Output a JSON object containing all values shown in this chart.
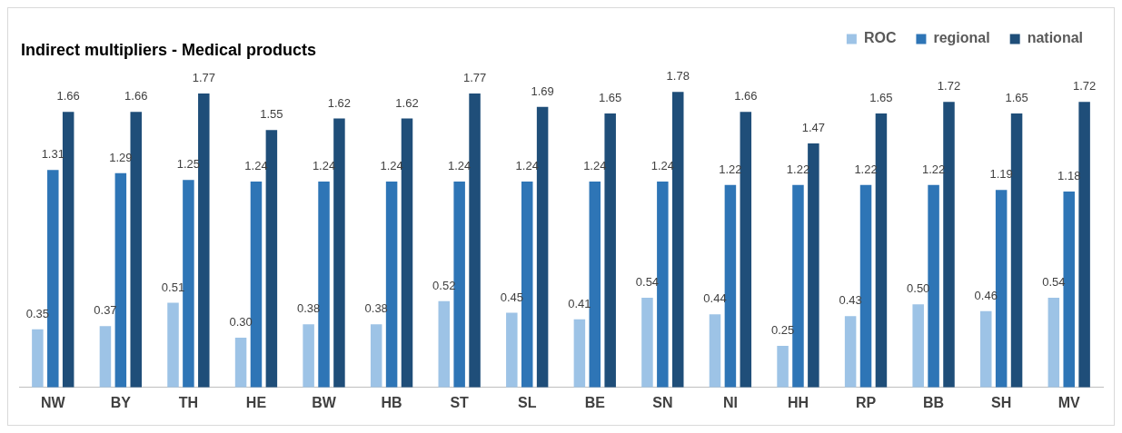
{
  "chart_data": {
    "type": "bar",
    "title": "Indirect multipliers - Medical products",
    "categories": [
      "NW",
      "BY",
      "TH",
      "HE",
      "BW",
      "HB",
      "ST",
      "SL",
      "BE",
      "SN",
      "NI",
      "HH",
      "RP",
      "BB",
      "SH",
      "MV"
    ],
    "series": [
      {
        "name": "ROC",
        "color": "#9dc3e6",
        "values": [
          0.35,
          0.37,
          0.51,
          0.3,
          0.38,
          0.38,
          0.52,
          0.45,
          0.41,
          0.54,
          0.44,
          0.25,
          0.43,
          0.5,
          0.46,
          0.54
        ],
        "value_labels": [
          "0.35",
          "0.37",
          "0.51",
          "0.30",
          "0.38",
          "0.38",
          "0.52",
          "0.45",
          "0.41",
          "0.54",
          "0.44",
          "0.25",
          "0.43",
          "0.50",
          "0.46",
          "0.54"
        ]
      },
      {
        "name": "regional",
        "color": "#2e75b6",
        "values": [
          1.31,
          1.29,
          1.25,
          1.24,
          1.24,
          1.24,
          1.24,
          1.24,
          1.24,
          1.24,
          1.22,
          1.22,
          1.22,
          1.22,
          1.19,
          1.18
        ],
        "value_labels": [
          "1.31",
          "1.29",
          "1.25",
          "1.24",
          "1.24",
          "1.24",
          "1.24",
          "1.24",
          "1.24",
          "1.24",
          "1.22",
          "1.22",
          "1.22",
          "1.22",
          "1.19",
          "1.18"
        ]
      },
      {
        "name": "national",
        "color": "#1f4e79",
        "values": [
          1.66,
          1.66,
          1.77,
          1.55,
          1.62,
          1.62,
          1.77,
          1.69,
          1.65,
          1.78,
          1.66,
          1.47,
          1.65,
          1.72,
          1.65,
          1.72
        ],
        "value_labels": [
          "1.66",
          "1.66",
          "1.77",
          "1.55",
          "1.62",
          "1.62",
          "1.77",
          "1.69",
          "1.65",
          "1.78",
          "1.66",
          "1.47",
          "1.65",
          "1.72",
          "1.65",
          "1.72"
        ]
      }
    ],
    "legend": "top right",
    "tick_labels": "x"
  }
}
